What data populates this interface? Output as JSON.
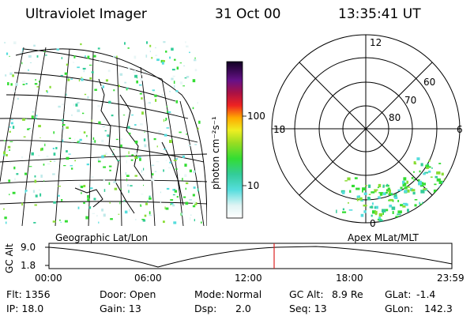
{
  "header": {
    "title": "Ultraviolet Imager",
    "date": "31 Oct 00",
    "time": "13:35:41 UT"
  },
  "colorbar": {
    "unit_label": "photon cm⁻²s⁻¹",
    "ticks": [
      "100",
      "10"
    ]
  },
  "polar_plot": {
    "mlt_labels": {
      "top": "12",
      "left": "18",
      "right": "6",
      "bottom": "0"
    },
    "lat_labels": [
      "60",
      "70",
      "80"
    ]
  },
  "map_labels": {
    "left": "Geographic Lat/Lon",
    "right": "Apex MLat/MLT"
  },
  "alt_plot": {
    "ylabel": "GC Alt",
    "y_ticks": [
      "9.0",
      "1.8"
    ],
    "x_ticks": [
      "00:00",
      "06:00",
      "12:00",
      "18:00",
      "23:59"
    ],
    "marker_time": "13:35"
  },
  "status": {
    "flt": "Flt: 1356",
    "ip": "IP: 18.0",
    "door": "Door: Open",
    "gain": "Gain: 13",
    "mode_label": "Mode:",
    "mode_value": "Normal",
    "dsp_label": "Dsp:",
    "dsp_value": "2.0",
    "gcalt_label": "GC Alt:",
    "gcalt_value": "8.9 Re",
    "seq": "Seq: 13",
    "glat_label": "GLat:",
    "glat_value": "-1.4",
    "glon_label": "GLon:",
    "glon_value": "142.3"
  },
  "colors": {
    "aurora_green": "#33dd33",
    "aurora_cyan": "#44dddd",
    "marker_red": "#dd2222"
  }
}
